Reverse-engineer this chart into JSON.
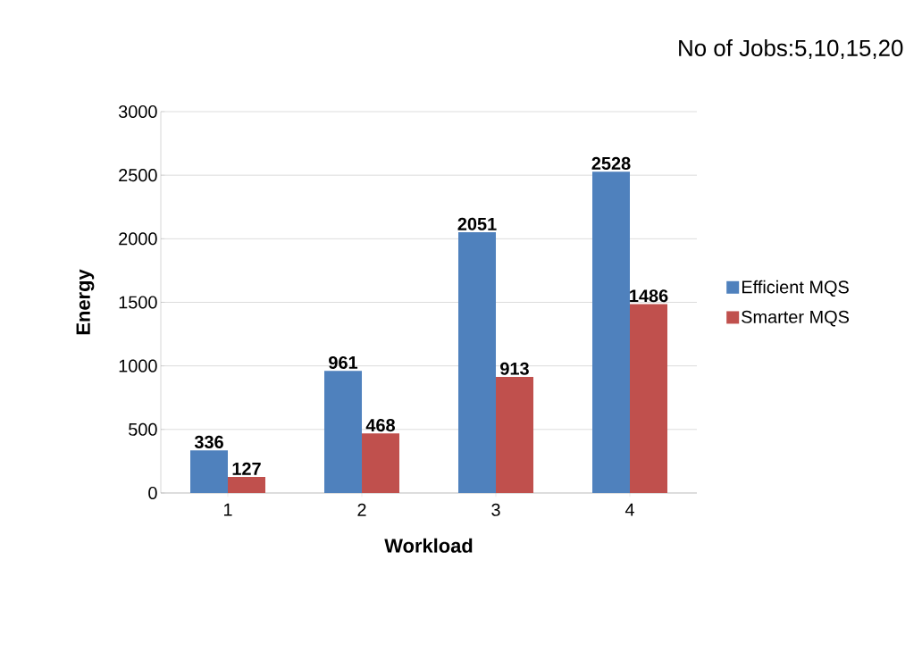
{
  "chart_data": {
    "type": "bar",
    "title": "No of Jobs:5,10,15,20",
    "xlabel": "Workload",
    "ylabel": "Energy",
    "categories": [
      "1",
      "2",
      "3",
      "4"
    ],
    "series": [
      {
        "name": "Efficient MQS",
        "color": "#4f81bd",
        "values": [
          336,
          961,
          2051,
          2528
        ]
      },
      {
        "name": "Smarter MQS",
        "color": "#c0504d",
        "values": [
          127,
          468,
          913,
          1486
        ]
      }
    ],
    "ylim": [
      0,
      3000
    ],
    "yticks": [
      0,
      500,
      1000,
      1500,
      2000,
      2500,
      3000
    ],
    "grid": "y",
    "legend": "right",
    "data_labels": true
  }
}
